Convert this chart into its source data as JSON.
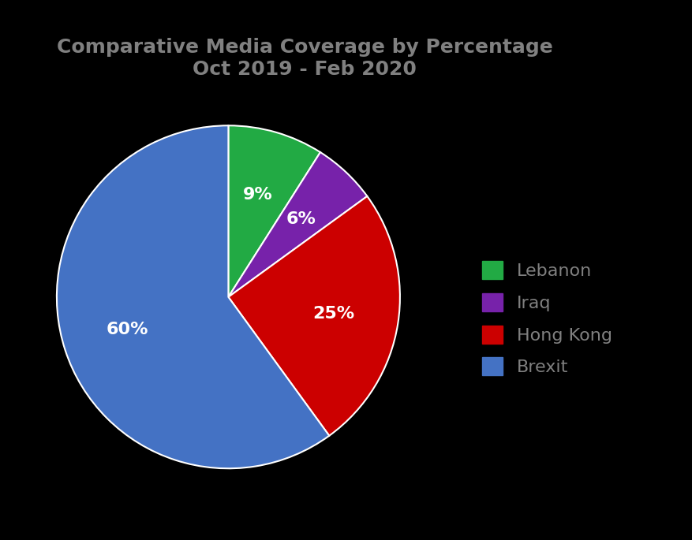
{
  "title": "Comparative Media Coverage by Percentage\nOct 2019 - Feb 2020",
  "labels": [
    "Lebanon",
    "Iraq",
    "Hong Kong",
    "Brexit"
  ],
  "values": [
    9,
    6,
    25,
    60
  ],
  "colors": [
    "#22aa44",
    "#7722aa",
    "#cc0000",
    "#4472c4"
  ],
  "autopct_labels": [
    "9%",
    "6%",
    "25%",
    "60%"
  ],
  "background_color": "#000000",
  "text_color": "#808080",
  "title_fontsize": 18,
  "label_fontsize": 16,
  "legend_fontsize": 16,
  "startangle": 90
}
